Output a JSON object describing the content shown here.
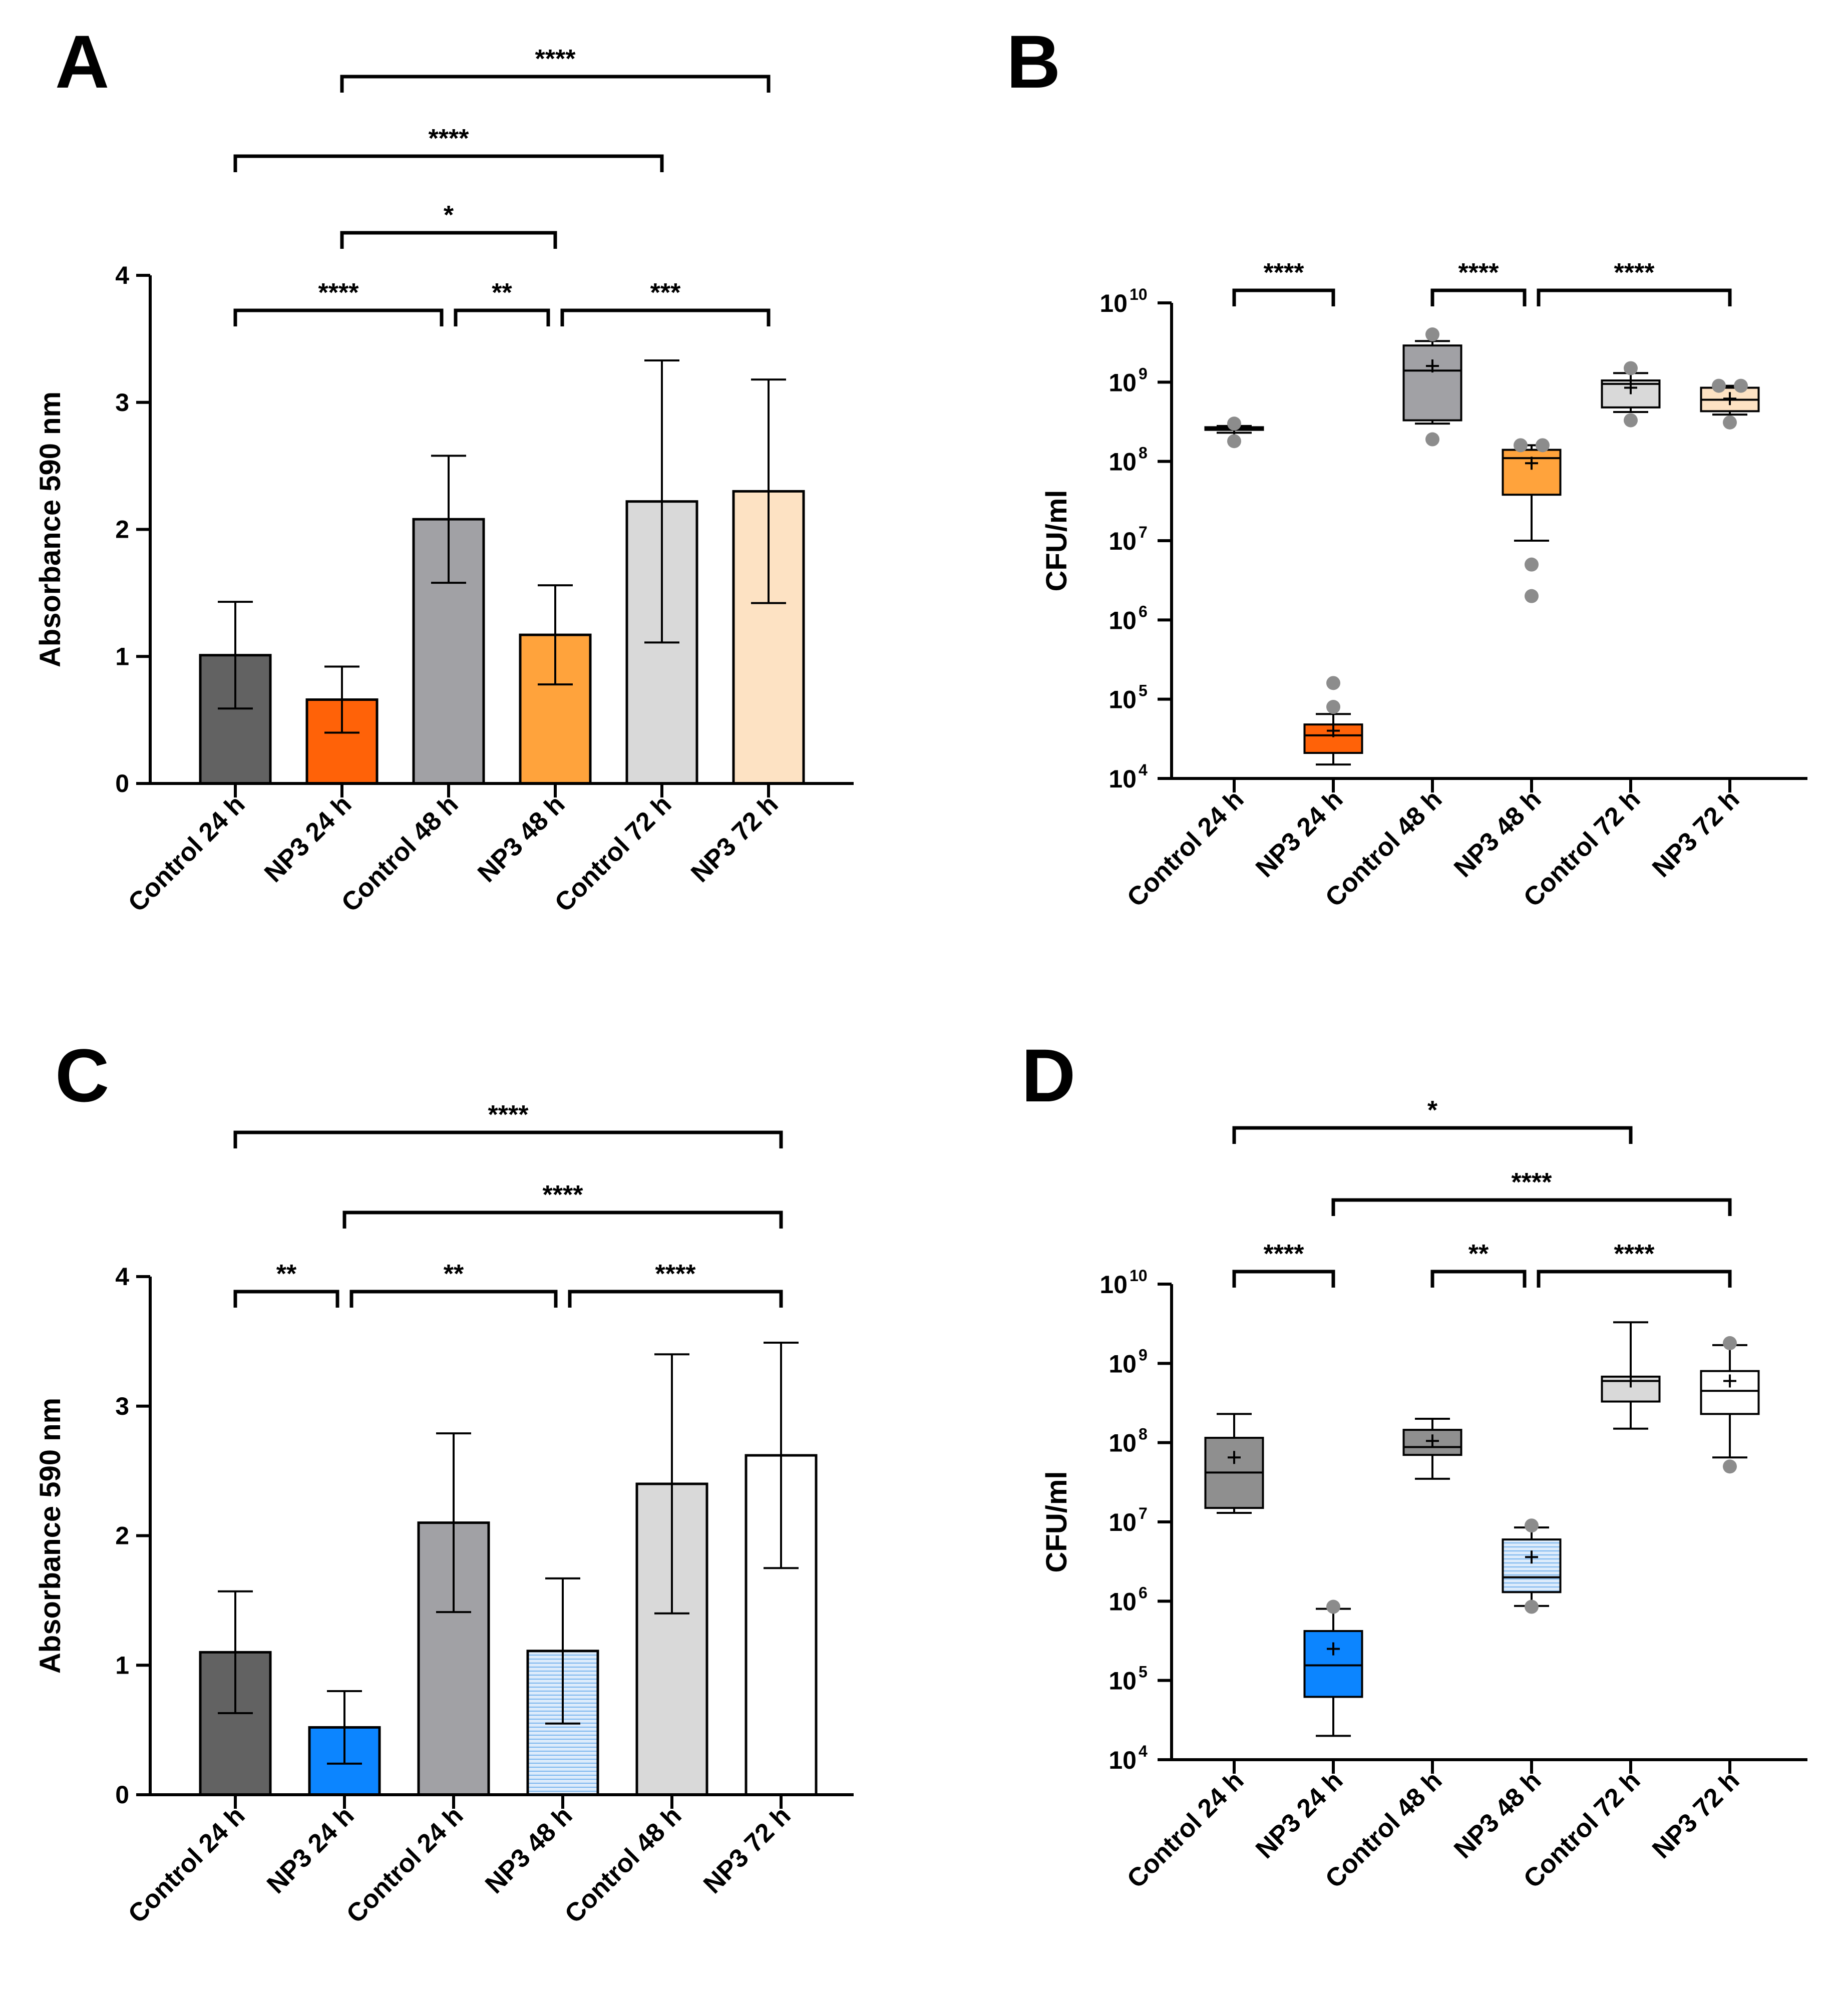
{
  "chart_data": [
    {
      "panel": "A",
      "type": "bar",
      "ylabel": "Absorbance 590 nm",
      "ylim": [
        0,
        4
      ],
      "yticks": [
        0,
        1,
        2,
        3,
        4
      ],
      "categories": [
        "Control 24 h",
        "NP3 24 h",
        "Control 48 h",
        "NP3 48 h",
        "Control 72 h",
        "NP3 72 h"
      ],
      "values": [
        1.01,
        0.66,
        2.08,
        1.17,
        2.22,
        2.3
      ],
      "errors": [
        0.42,
        0.26,
        0.5,
        0.39,
        1.11,
        0.88
      ],
      "colors": [
        "#626262",
        "#ff6208",
        "#a1a1a5",
        "#ffa33c",
        "#d9d9d9",
        "#fde2c3"
      ],
      "significance": [
        {
          "from": 0,
          "to": 2,
          "label": "****"
        },
        {
          "from": 2,
          "to": 3,
          "label": "**"
        },
        {
          "from": 3,
          "to": 5,
          "label": "***"
        },
        {
          "from": 1,
          "to": 3,
          "label": "*"
        },
        {
          "from": 0,
          "to": 4,
          "label": "****"
        },
        {
          "from": 1,
          "to": 5,
          "label": "****"
        }
      ]
    },
    {
      "panel": "B",
      "type": "box",
      "yscale": "log",
      "ylabel": "CFU/ml",
      "ylim": [
        10000,
        10000000000
      ],
      "ytick_base": "10",
      "ytick_exponents": [
        "4",
        "5",
        "6",
        "7",
        "8",
        "9",
        "10"
      ],
      "categories": [
        "Control 24 h",
        "NP3 24 h",
        "Control 48 h",
        "NP3 48 h",
        "Control 72 h",
        "NP3 72 h"
      ],
      "boxes": [
        {
          "whisker_low": 230000000,
          "q1": 250000000,
          "median": 260000000,
          "q3": 270000000,
          "whisker_high": 280000000,
          "mean": 260000000,
          "outliers": [
            300000000,
            180000000
          ]
        },
        {
          "whisker_low": 15000,
          "q1": 21000,
          "median": 35000,
          "q3": 48000,
          "whisker_high": 65000,
          "mean": 40000,
          "outliers": [
            160000,
            80000
          ]
        },
        {
          "whisker_low": 300000000,
          "q1": 330000000,
          "median": 1400000000,
          "q3": 2900000000,
          "whisker_high": 3300000000,
          "mean": 1600000000,
          "outliers": [
            4000000000,
            190000000
          ]
        },
        {
          "whisker_low": 10000000,
          "q1": 38000000,
          "median": 110000000,
          "q3": 140000000,
          "whisker_high": 160000000,
          "mean": 95000000,
          "outliers": [
            160000000,
            160000000,
            5000000,
            2000000
          ]
        },
        {
          "whisker_low": 420000000,
          "q1": 480000000,
          "median": 950000000,
          "q3": 1050000000,
          "whisker_high": 1300000000,
          "mean": 850000000,
          "outliers": [
            1500000000,
            330000000
          ]
        },
        {
          "whisker_low": 390000000,
          "q1": 430000000,
          "median": 600000000,
          "q3": 850000000,
          "whisker_high": 900000000,
          "mean": 620000000,
          "outliers": [
            900000000,
            900000000,
            310000000
          ]
        }
      ],
      "colors": [
        "#9d9da1",
        "#ff6208",
        "#a1a1a5",
        "#ffa33c",
        "#d9d9d9",
        "#fde2c3"
      ],
      "significance": [
        {
          "from": 0,
          "to": 1,
          "label": "****"
        },
        {
          "from": 2,
          "to": 3,
          "label": "****"
        },
        {
          "from": 3,
          "to": 5,
          "label": "****"
        }
      ]
    },
    {
      "panel": "C",
      "type": "bar",
      "ylabel": "Absorbance 590 nm",
      "ylim": [
        0,
        4
      ],
      "yticks": [
        0,
        1,
        2,
        3,
        4
      ],
      "categories": [
        "Control 24 h",
        "NP3 24 h",
        "Control 24 h",
        "NP3 48 h",
        "Control 48 h",
        "NP3 72 h"
      ],
      "values": [
        1.1,
        0.52,
        2.1,
        1.11,
        2.4,
        2.62
      ],
      "errors": [
        0.47,
        0.28,
        0.69,
        0.56,
        1.0,
        0.87
      ],
      "colors": [
        "#626262",
        "#0c85ff",
        "#a1a1a5",
        "#d3e7fb",
        "#d9d9d9",
        "#ffffff"
      ],
      "significance": [
        {
          "from": 0,
          "to": 1,
          "label": "**"
        },
        {
          "from": 1,
          "to": 3,
          "label": "**"
        },
        {
          "from": 3,
          "to": 5,
          "label": "****"
        },
        {
          "from": 1,
          "to": 5,
          "label": "****"
        },
        {
          "from": 0,
          "to": 5,
          "label": "****"
        }
      ]
    },
    {
      "panel": "D",
      "type": "box",
      "yscale": "log",
      "ylabel": "CFU/ml",
      "ylim": [
        10000,
        10000000000
      ],
      "ytick_base": "10",
      "ytick_exponents": [
        "4",
        "5",
        "6",
        "7",
        "8",
        "9",
        "10"
      ],
      "categories": [
        "Control 24 h",
        "NP3 24 h",
        "Control 48 h",
        "NP3 48 h",
        "Control 72 h",
        "NP3 72 h"
      ],
      "boxes": [
        {
          "whisker_low": 13000000,
          "q1": 15000000,
          "median": 42000000,
          "q3": 115000000,
          "whisker_high": 230000000,
          "mean": 65000000,
          "outliers": []
        },
        {
          "whisker_low": 20000,
          "q1": 62000,
          "median": 155000,
          "q3": 420000,
          "whisker_high": 800000,
          "mean": 250000,
          "outliers": [
            850000
          ]
        },
        {
          "whisker_low": 35000000,
          "q1": 70000000,
          "median": 88000000,
          "q3": 145000000,
          "whisker_high": 200000000,
          "mean": 105000000,
          "outliers": []
        },
        {
          "whisker_low": 870000,
          "q1": 1300000,
          "median": 2000000,
          "q3": 6000000,
          "whisker_high": 8500000,
          "mean": 3600000,
          "outliers": [
            9000000,
            850000
          ]
        },
        {
          "whisker_low": 150000000,
          "q1": 330000000,
          "median": 600000000,
          "q3": 680000000,
          "whisker_high": 3300000000,
          "mean": 600000000,
          "outliers": []
        },
        {
          "whisker_low": 65000000,
          "q1": 230000000,
          "median": 450000000,
          "q3": 800000000,
          "whisker_high": 1700000000,
          "mean": 600000000,
          "outliers": [
            1800000000,
            50000000
          ]
        }
      ],
      "colors": [
        "#8f8f8f",
        "#0c85ff",
        "#8f8f8f",
        "#d3e7fb",
        "#d9d9d9",
        "#ffffff"
      ],
      "significance": [
        {
          "from": 0,
          "to": 1,
          "label": "****"
        },
        {
          "from": 2,
          "to": 3,
          "label": "**"
        },
        {
          "from": 3,
          "to": 5,
          "label": "****"
        },
        {
          "from": 1,
          "to": 5,
          "label": "****"
        },
        {
          "from": 0,
          "to": 4,
          "label": "*"
        }
      ]
    }
  ]
}
